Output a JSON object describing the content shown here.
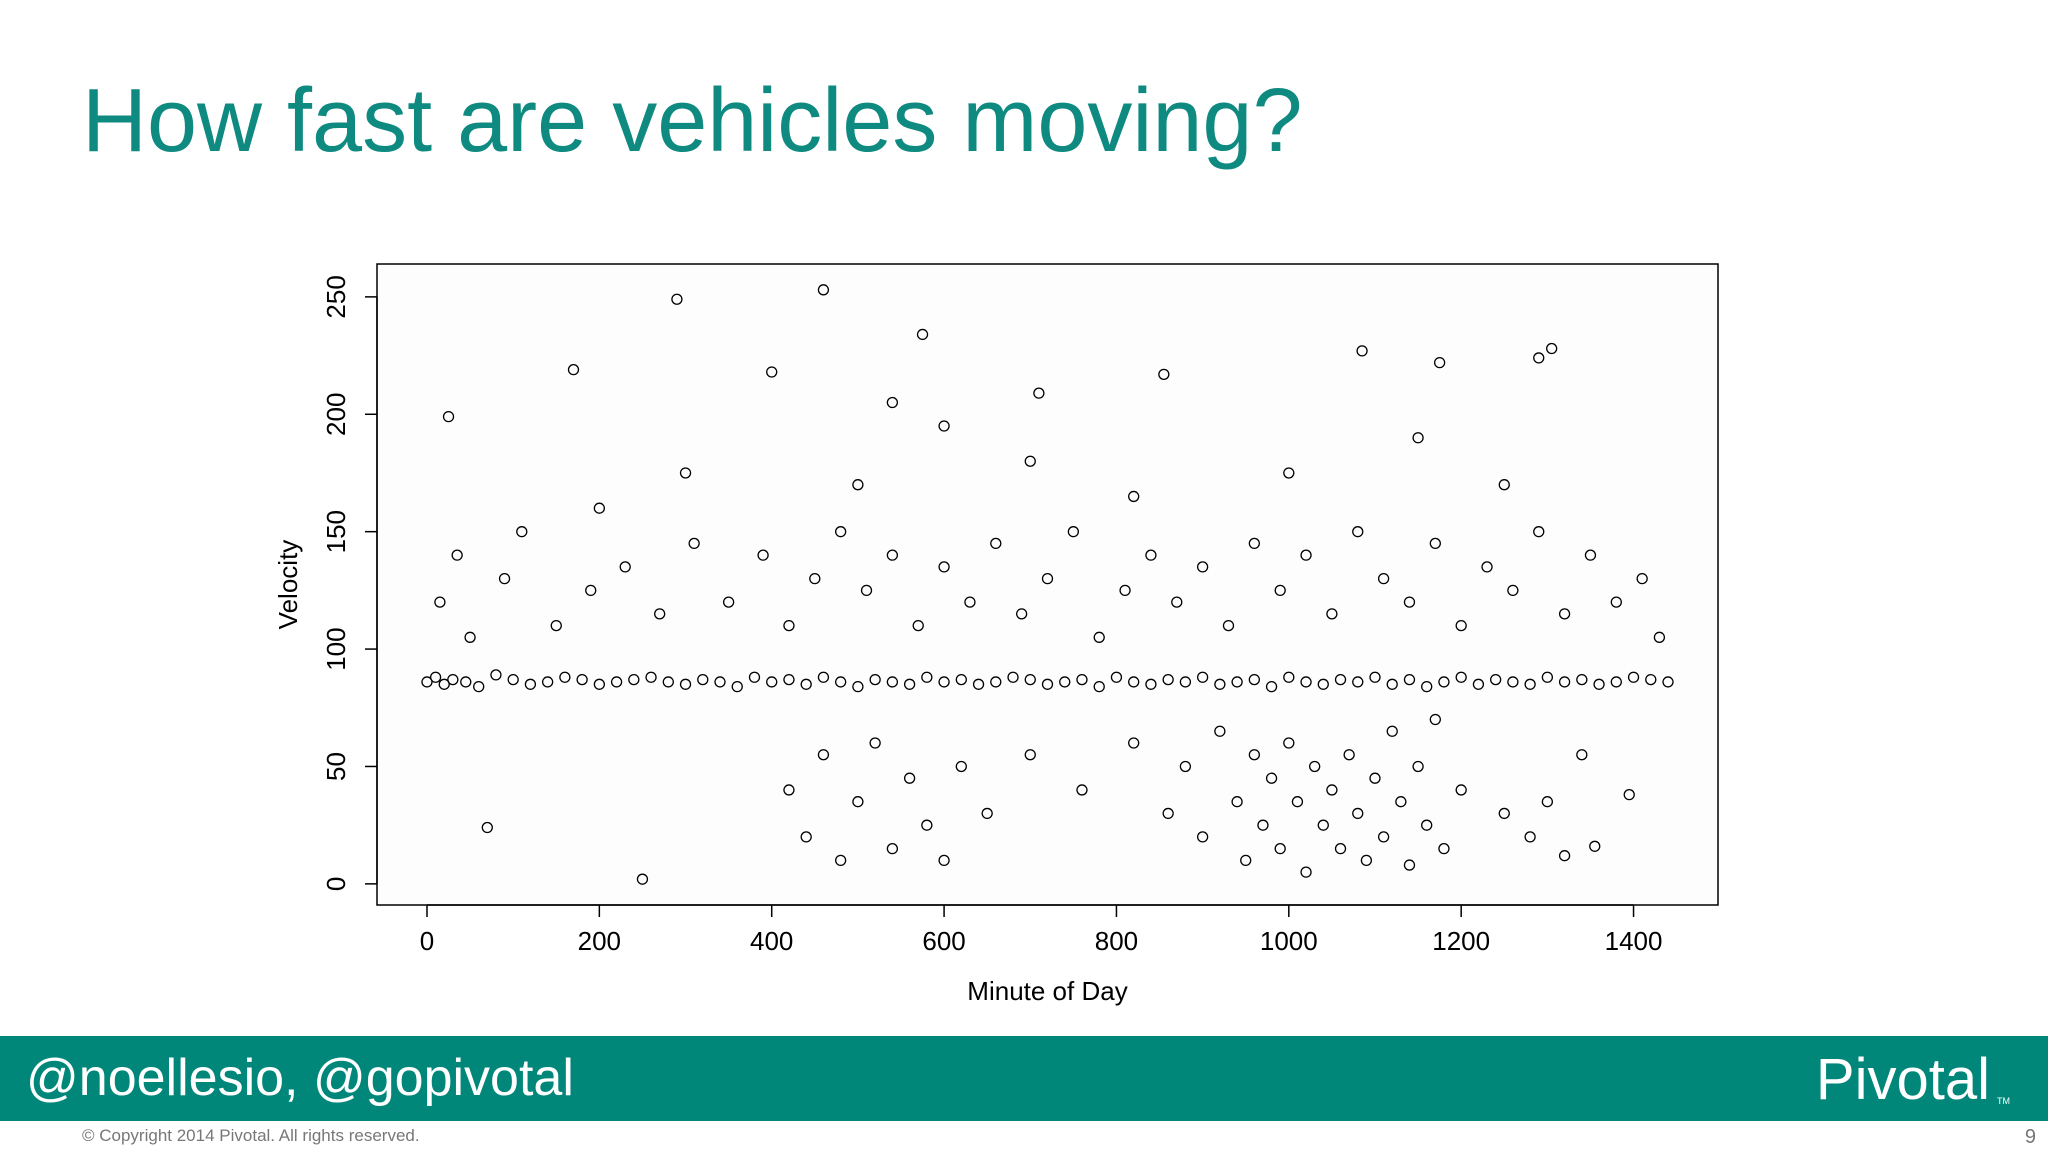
{
  "slide_title": "How fast are vehicles moving?",
  "footer": {
    "handle": "@noellesio, @gopivotal",
    "logo": "Pivotal",
    "logo_mark": "TM",
    "copyright": "© Copyright 2014 Pivotal. All rights reserved.",
    "page_number": "9"
  },
  "chart_data": {
    "type": "scatter",
    "xlabel": "Minute of Day",
    "ylabel": "Velocity",
    "color": "#000000",
    "xlim": [
      -58,
      1498
    ],
    "ylim": [
      -9,
      264
    ],
    "xticks": [
      0,
      200,
      400,
      600,
      800,
      1000,
      1200,
      1400
    ],
    "yticks": [
      0,
      50,
      100,
      150,
      200,
      250
    ],
    "x": [
      0,
      10,
      20,
      30,
      45,
      60,
      80,
      100,
      120,
      140,
      160,
      180,
      200,
      220,
      240,
      260,
      280,
      300,
      320,
      340,
      360,
      380,
      400,
      420,
      440,
      460,
      480,
      500,
      520,
      540,
      560,
      580,
      600,
      620,
      640,
      660,
      680,
      700,
      720,
      740,
      760,
      780,
      800,
      820,
      840,
      860,
      880,
      900,
      920,
      940,
      960,
      980,
      1000,
      1020,
      1040,
      1060,
      1080,
      1100,
      1120,
      1140,
      1160,
      1180,
      1200,
      1220,
      1240,
      1260,
      1280,
      1300,
      1320,
      1340,
      1360,
      1380,
      1400,
      1420,
      1440,
      15,
      35,
      50,
      90,
      110,
      150,
      190,
      230,
      270,
      310,
      350,
      390,
      420,
      450,
      480,
      510,
      540,
      570,
      600,
      630,
      660,
      690,
      720,
      750,
      780,
      810,
      840,
      870,
      900,
      930,
      960,
      990,
      1020,
      1050,
      1080,
      1110,
      1140,
      1170,
      1200,
      1230,
      1260,
      1290,
      1320,
      1350,
      1380,
      1410,
      1430,
      500,
      700,
      1000,
      1150,
      300,
      820,
      1250,
      600,
      200,
      420,
      440,
      460,
      480,
      500,
      520,
      540,
      560,
      580,
      600,
      620,
      650,
      700,
      760,
      820,
      860,
      880,
      900,
      920,
      940,
      950,
      960,
      970,
      980,
      990,
      1000,
      1010,
      1020,
      1030,
      1040,
      1050,
      1060,
      1070,
      1080,
      1090,
      1100,
      1110,
      1120,
      1130,
      1140,
      1150,
      1160,
      1170,
      1180,
      1200,
      1250,
      1280,
      1300,
      1320,
      1340,
      460,
      290,
      575,
      170,
      1085,
      1305,
      1290,
      1175,
      400,
      855,
      25,
      70,
      250,
      1355,
      1395,
      540,
      710
    ],
    "values": [
      86,
      88,
      85,
      87,
      86,
      84,
      89,
      87,
      85,
      86,
      88,
      87,
      85,
      86,
      87,
      88,
      86,
      85,
      87,
      86,
      84,
      88,
      86,
      87,
      85,
      88,
      86,
      84,
      87,
      86,
      85,
      88,
      86,
      87,
      85,
      86,
      88,
      87,
      85,
      86,
      87,
      84,
      88,
      86,
      85,
      87,
      86,
      88,
      85,
      86,
      87,
      84,
      88,
      86,
      85,
      87,
      86,
      88,
      85,
      87,
      84,
      86,
      88,
      85,
      87,
      86,
      85,
      88,
      86,
      87,
      85,
      86,
      88,
      87,
      86,
      120,
      140,
      105,
      130,
      150,
      110,
      125,
      135,
      115,
      145,
      120,
      140,
      110,
      130,
      150,
      125,
      140,
      110,
      135,
      120,
      145,
      115,
      130,
      150,
      105,
      125,
      140,
      120,
      135,
      110,
      145,
      125,
      140,
      115,
      150,
      130,
      120,
      145,
      110,
      135,
      125,
      150,
      115,
      140,
      120,
      130,
      105,
      170,
      180,
      175,
      190,
      175,
      165,
      170,
      195,
      160,
      40,
      20,
      55,
      10,
      35,
      60,
      15,
      45,
      25,
      10,
      50,
      30,
      55,
      40,
      60,
      30,
      50,
      20,
      65,
      35,
      10,
      55,
      25,
      45,
      15,
      60,
      35,
      5,
      50,
      25,
      40,
      15,
      55,
      30,
      10,
      45,
      20,
      65,
      35,
      8,
      50,
      25,
      70,
      15,
      40,
      30,
      20,
      35,
      12,
      55,
      253,
      249,
      234,
      219,
      227,
      228,
      224,
      222,
      218,
      217,
      199,
      24,
      2,
      16,
      38,
      205,
      209
    ]
  }
}
